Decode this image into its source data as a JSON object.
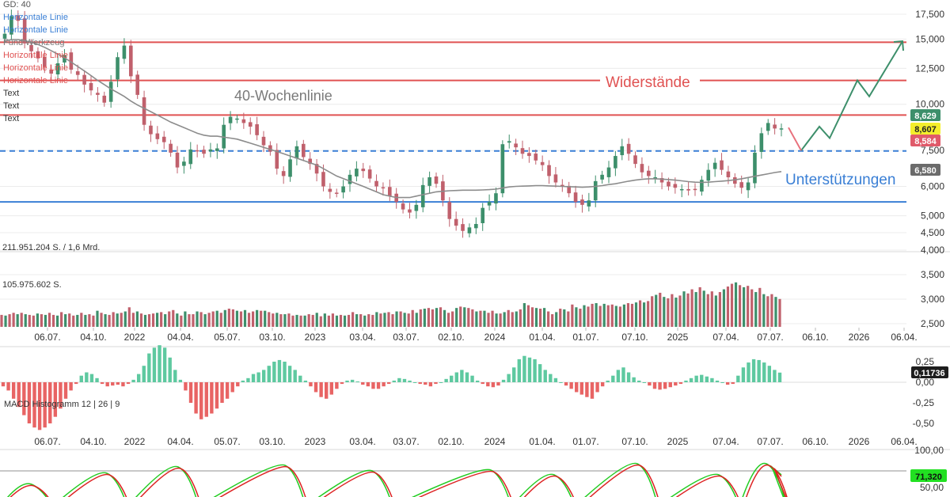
{
  "legend": {
    "gd": "GD: 40",
    "tools": [
      {
        "text": "Horizontale Linie",
        "color": "#3a7fd5"
      },
      {
        "text": "Horizontale Linie",
        "color": "#3a7fd5"
      },
      {
        "text": "Fund Werkzeug",
        "color": "#7a7a7a"
      },
      {
        "text": "Horizontale Linie",
        "color": "#e05252"
      },
      {
        "text": "Horizontale Linie",
        "color": "#e05252"
      },
      {
        "text": "Horizontale Linie",
        "color": "#e05252"
      },
      {
        "text": "Text",
        "color": "#333333"
      },
      {
        "text": "Text",
        "color": "#333333"
      },
      {
        "text": "Text",
        "color": "#333333"
      }
    ]
  },
  "annotations": {
    "resistance": "Widerstände",
    "support": "Unterstützungen",
    "ma_label": "40-Wochenlinie"
  },
  "badges": {
    "price_high": "8,629",
    "price_close": "8,607",
    "price_low": "8,584",
    "ma_value": "6,580",
    "macd_value": "0,11736",
    "stoch_value": "71,320"
  },
  "colors": {
    "up": "#3d8f6b",
    "down": "#c0606c",
    "resistance": "#e05252",
    "support": "#3a7fd5",
    "ma": "#8c8c8c",
    "macd_pos": "#5ec9a0",
    "macd_neg": "#e86464",
    "stoch_k": "#22cc22",
    "stoch_d": "#dd2222",
    "forecast": "#3d8f6b"
  },
  "chart_data": {
    "type": "line",
    "title": "",
    "scale": "log",
    "price_ylim": [
      4200,
      18500
    ],
    "price_ticks": [
      "17,500",
      "15,000",
      "12,500",
      "10,000",
      "7,500",
      "6,000",
      "5,000",
      "4,500",
      "4,000",
      "3,500",
      "3,000",
      "2,500"
    ],
    "price_tick_values": [
      17500,
      15000,
      12500,
      10000,
      7500,
      6000,
      5000,
      4500,
      4000,
      3500,
      3000,
      2500
    ],
    "x_ticks": [
      "06.07.",
      "04.10.",
      "2022",
      "04.04.",
      "05.07.",
      "03.10.",
      "2023",
      "03.04.",
      "03.07.",
      "02.10.",
      "2024",
      "01.04.",
      "01.07.",
      "07.10.",
      "2025",
      "07.04.",
      "07.07.",
      "06.10.",
      "2026",
      "06.04."
    ],
    "x_ticks_bottom": [
      "06.07.",
      "04.10.",
      "2022",
      "04.04.",
      "05.07.",
      "03.10.",
      "2023",
      "03.04.",
      "03.07.",
      "02.10.",
      "2024",
      "01.04.",
      "01.07.",
      "07.10.",
      "2025",
      "07.04.",
      "07.07.",
      "06.10.",
      "2026",
      "06.04."
    ],
    "horizontal_lines": [
      {
        "kind": "resistance",
        "value": 14700
      },
      {
        "kind": "resistance",
        "value": 11600
      },
      {
        "kind": "resistance",
        "value": 9350
      },
      {
        "kind": "support",
        "value": 7480
      },
      {
        "kind": "support",
        "value": 5450
      }
    ],
    "close_series": [
      15500,
      17300,
      16800,
      14600,
      13900,
      13300,
      12600,
      12100,
      12900,
      13600,
      12400,
      12000,
      11300,
      10900,
      10600,
      10100,
      11500,
      13400,
      14400,
      11900,
      10600,
      8800,
      8300,
      8050,
      7900,
      7400,
      6750,
      7000,
      7550,
      7500,
      7350,
      7550,
      7600,
      8800,
      9250,
      9150,
      8900,
      8700,
      8250,
      7750,
      7450,
      6700,
      6400,
      7100,
      7700,
      7200,
      6900,
      6500,
      6000,
      5800,
      5750,
      6000,
      6450,
      6700,
      6600,
      6300,
      6000,
      5950,
      5650,
      5450,
      5200,
      5100,
      5350,
      6050,
      6350,
      6100,
      5500,
      4900,
      4700,
      4550,
      4650,
      4750,
      5250,
      5450,
      5750,
      7800,
      7950,
      7650,
      7350,
      7250,
      7050,
      6850,
      6400,
      6150,
      6050,
      5750,
      5450,
      5350,
      5500,
      6200,
      6450,
      6750,
      7250,
      7700,
      7350,
      6900,
      6550,
      6400,
      6350,
      6150,
      6000,
      5950,
      5900,
      5850,
      5900,
      6250,
      6650,
      6950,
      6650,
      6350,
      6100,
      5950,
      6150,
      7400,
      8350,
      8900,
      8600,
      8607
    ],
    "ma40_series": [
      14800,
      14950,
      14950,
      14850,
      14700,
      14500,
      14250,
      13950,
      13650,
      13350,
      13000,
      12650,
      12300,
      11950,
      11600,
      11300,
      11000,
      10750,
      10500,
      10200,
      9950,
      9750,
      9550,
      9350,
      9150,
      8950,
      8800,
      8650,
      8500,
      8350,
      8250,
      8200,
      8200,
      8150,
      8100,
      8050,
      7950,
      7850,
      7750,
      7650,
      7550,
      7450,
      7350,
      7250,
      7150,
      7050,
      6950,
      6850,
      6700,
      6550,
      6400,
      6300,
      6200,
      6100,
      6000,
      5900,
      5800,
      5700,
      5650,
      5600,
      5600,
      5600,
      5650,
      5700,
      5750,
      5800,
      5820,
      5840,
      5850,
      5860,
      5860,
      5860,
      5870,
      5880,
      5900,
      5940,
      5980,
      6000,
      6010,
      6020,
      6030,
      6030,
      6020,
      6010,
      6000,
      5990,
      5980,
      5970,
      5980,
      6000,
      6030,
      6070,
      6100,
      6150,
      6200,
      6240,
      6270,
      6290,
      6290,
      6280,
      6260,
      6240,
      6210,
      6180,
      6160,
      6150,
      6160,
      6180,
      6200,
      6220,
      6250,
      6290,
      6340,
      6390,
      6440,
      6490,
      6540,
      6580
    ],
    "forecast": [
      [
        0,
        7500
      ],
      [
        1,
        8700
      ],
      [
        2,
        8100
      ],
      [
        3,
        11600
      ],
      [
        4,
        10500
      ],
      [
        5,
        14800
      ]
    ],
    "volume_labels": [
      "211.951.204 S. / 1,6 Mrd.",
      "105.975.602 S."
    ],
    "volume_series": [
      0.15,
      0.14,
      0.16,
      0.18,
      0.16,
      0.18,
      0.16,
      0.15,
      0.14,
      0.17,
      0.16,
      0.15,
      0.18,
      0.15,
      0.14,
      0.19,
      0.16,
      0.17,
      0.14,
      0.15,
      0.18,
      0.15,
      0.16,
      0.14,
      0.21,
      0.18,
      0.16,
      0.15,
      0.19,
      0.17,
      0.18,
      0.2,
      0.26,
      0.18,
      0.2,
      0.17,
      0.15,
      0.16,
      0.17,
      0.18,
      0.19,
      0.16,
      0.2,
      0.22,
      0.17,
      0.14,
      0.2,
      0.16,
      0.16,
      0.2,
      0.19,
      0.16,
      0.18,
      0.2,
      0.21,
      0.18,
      0.22,
      0.24,
      0.23,
      0.21,
      0.2,
      0.22,
      0.18,
      0.2,
      0.22,
      0.21,
      0.21,
      0.19,
      0.17,
      0.18,
      0.16,
      0.16,
      0.17,
      0.14,
      0.15,
      0.14,
      0.14,
      0.16,
      0.15,
      0.18,
      0.13,
      0.17,
      0.14,
      0.17,
      0.14,
      0.15,
      0.14,
      0.15,
      0.19,
      0.16,
      0.16,
      0.14,
      0.16,
      0.15,
      0.19,
      0.17,
      0.18,
      0.19,
      0.16,
      0.2,
      0.2,
      0.18,
      0.17,
      0.22,
      0.18,
      0.23,
      0.24,
      0.25,
      0.23,
      0.25,
      0.26,
      0.22,
      0.18,
      0.2,
      0.25,
      0.27,
      0.26,
      0.25,
      0.23,
      0.2,
      0.21,
      0.21,
      0.18,
      0.21,
      0.17,
      0.17,
      0.19,
      0.22,
      0.19,
      0.2,
      0.23,
      0.32,
      0.29,
      0.26,
      0.25,
      0.24,
      0.25,
      0.2,
      0.16,
      0.19,
      0.24,
      0.23,
      0.2,
      0.3,
      0.26,
      0.24,
      0.29,
      0.27,
      0.31,
      0.32,
      0.28,
      0.31,
      0.29,
      0.3,
      0.28,
      0.27,
      0.3,
      0.32,
      0.31,
      0.33,
      0.36,
      0.33,
      0.35,
      0.42,
      0.44,
      0.47,
      0.41,
      0.39,
      0.45,
      0.4,
      0.43,
      0.49,
      0.46,
      0.52,
      0.48,
      0.55,
      0.5,
      0.45,
      0.49,
      0.43,
      0.48,
      0.52,
      0.56,
      0.6,
      0.62,
      0.58,
      0.55,
      0.57,
      0.52,
      0.48,
      0.54,
      0.45,
      0.42,
      0.45,
      0.41,
      0.38
    ],
    "macd_ticks": [
      "0,25",
      "0,00",
      "-0,25",
      "-0,50"
    ],
    "macd_tick_values": [
      0.25,
      0,
      -0.25,
      -0.5
    ],
    "macd_label": "MACD Histogramm 12 | 26 | 9",
    "macd_series": [
      -0.05,
      -0.1,
      -0.2,
      -0.3,
      -0.4,
      -0.5,
      -0.55,
      -0.58,
      -0.55,
      -0.5,
      -0.42,
      -0.32,
      -0.2,
      -0.1,
      -0.02,
      0.08,
      0.12,
      0.1,
      0.05,
      -0.02,
      -0.05,
      -0.04,
      -0.03,
      -0.05,
      -0.02,
      0.03,
      0.1,
      0.2,
      0.35,
      0.42,
      0.45,
      0.42,
      0.3,
      0.15,
      0.03,
      -0.1,
      -0.25,
      -0.38,
      -0.45,
      -0.42,
      -0.38,
      -0.32,
      -0.25,
      -0.2,
      -0.12,
      -0.05,
      0.02,
      0.05,
      0.1,
      0.12,
      0.15,
      0.2,
      0.25,
      0.27,
      0.25,
      0.2,
      0.15,
      0.08,
      0.02,
      -0.05,
      -0.12,
      -0.18,
      -0.2,
      -0.15,
      -0.08,
      -0.02,
      0.02,
      0.03,
      0.01,
      -0.03,
      -0.05,
      -0.08,
      -0.08,
      -0.05,
      -0.02,
      0.02,
      0.05,
      0.04,
      0.02,
      0.0,
      -0.02,
      -0.03,
      -0.05,
      -0.02,
      0.0,
      0.04,
      0.08,
      0.12,
      0.15,
      0.12,
      0.08,
      0.02,
      -0.02,
      -0.05,
      -0.06,
      -0.04,
      0.03,
      0.1,
      0.18,
      0.28,
      0.32,
      0.3,
      0.28,
      0.22,
      0.15,
      0.1,
      0.05,
      0.0,
      -0.04,
      -0.08,
      -0.12,
      -0.15,
      -0.18,
      -0.2,
      -0.12,
      -0.05,
      0.02,
      0.08,
      0.15,
      0.18,
      0.12,
      0.06,
      0.02,
      0.0,
      -0.04,
      -0.08,
      -0.09,
      -0.08,
      -0.06,
      -0.04,
      -0.02,
      0.02,
      0.05,
      0.08,
      0.09,
      0.07,
      0.05,
      0.02,
      0.0,
      -0.03,
      -0.02,
      0.08,
      0.18,
      0.24,
      0.28,
      0.27,
      0.24,
      0.2,
      0.15,
      0.11736
    ],
    "stoch_ticks": [
      "100,00",
      "50,00"
    ],
    "stoch_tick_values": [
      100,
      50
    ]
  }
}
